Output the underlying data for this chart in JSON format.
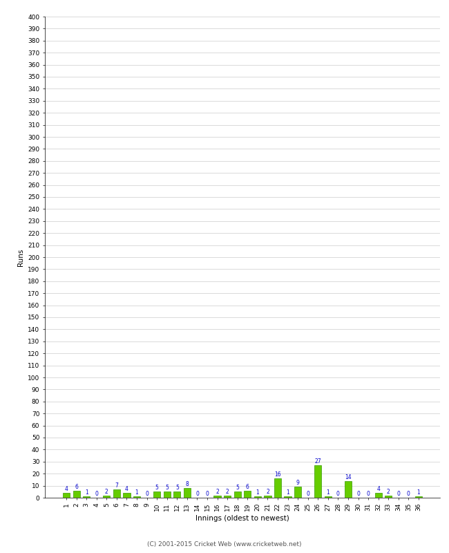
{
  "xlabel": "Innings (oldest to newest)",
  "ylabel": "Runs",
  "innings": [
    1,
    2,
    3,
    4,
    5,
    6,
    7,
    8,
    9,
    10,
    11,
    12,
    13,
    14,
    15,
    16,
    17,
    18,
    19,
    20,
    21,
    22,
    23,
    24,
    25,
    26,
    27,
    28,
    29,
    30,
    31,
    32,
    33,
    34,
    35,
    36
  ],
  "values": [
    4,
    6,
    1,
    0,
    2,
    7,
    4,
    1,
    0,
    5,
    5,
    5,
    8,
    0,
    0,
    2,
    2,
    5,
    6,
    1,
    2,
    16,
    1,
    9,
    0,
    27,
    1,
    0,
    14,
    0,
    0,
    4,
    2,
    0,
    0,
    1
  ],
  "bar_color": "#66cc00",
  "bar_edge_color": "#339900",
  "label_color": "#0000cc",
  "background_color": "#ffffff",
  "grid_color": "#cccccc",
  "ylim": [
    0,
    400
  ],
  "footer": "(C) 2001-2015 Cricket Web (www.cricketweb.net)"
}
